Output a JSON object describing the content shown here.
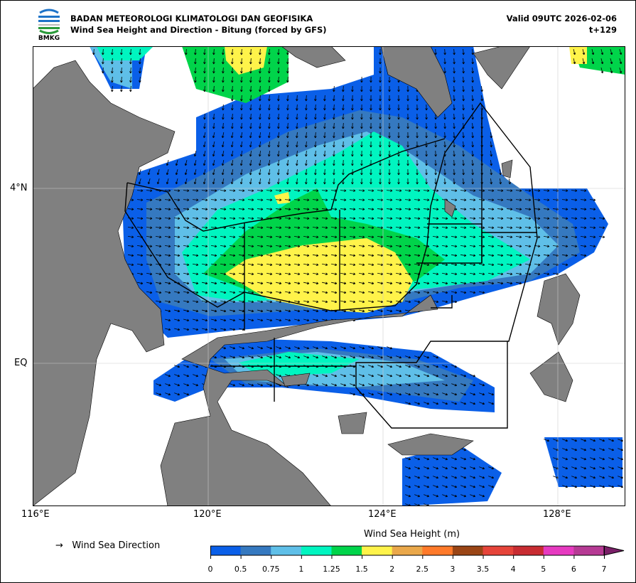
{
  "header": {
    "agency": "BADAN METEOROLOGI KLIMATOLOGI DAN GEOFISIKA",
    "product": "Wind Sea Height and Direction - Bitung (forced by GFS)",
    "valid": "Valid 09UTC 2026-02-06",
    "lead": "t+129",
    "logo_text": "BMKG"
  },
  "map": {
    "lon_ticks": [
      "116°E",
      "120°E",
      "124°E",
      "128°E"
    ],
    "lat_ticks": [
      "4°N",
      "EQ"
    ],
    "land_color": "#808080"
  },
  "legend": {
    "direction_symbol": "→",
    "direction_label": "Wind Sea Direction",
    "colorbar_title": "Wind Sea Height (m)",
    "levels": [
      "0",
      "0.5",
      "0.75",
      "1",
      "1.25",
      "1.5",
      "2",
      "2.5",
      "3",
      "3.5",
      "4",
      "5",
      "6",
      "7"
    ],
    "colors": [
      "#0a5fe8",
      "#3579c0",
      "#5fbfe8",
      "#00f5c0",
      "#00d44a",
      "#fff34a",
      "#eaa84a",
      "#ff7a2a",
      "#9a4515",
      "#e6443a",
      "#c82c32",
      "#e63ac0",
      "#b63a94"
    ],
    "extend_color": "#7a2068"
  }
}
